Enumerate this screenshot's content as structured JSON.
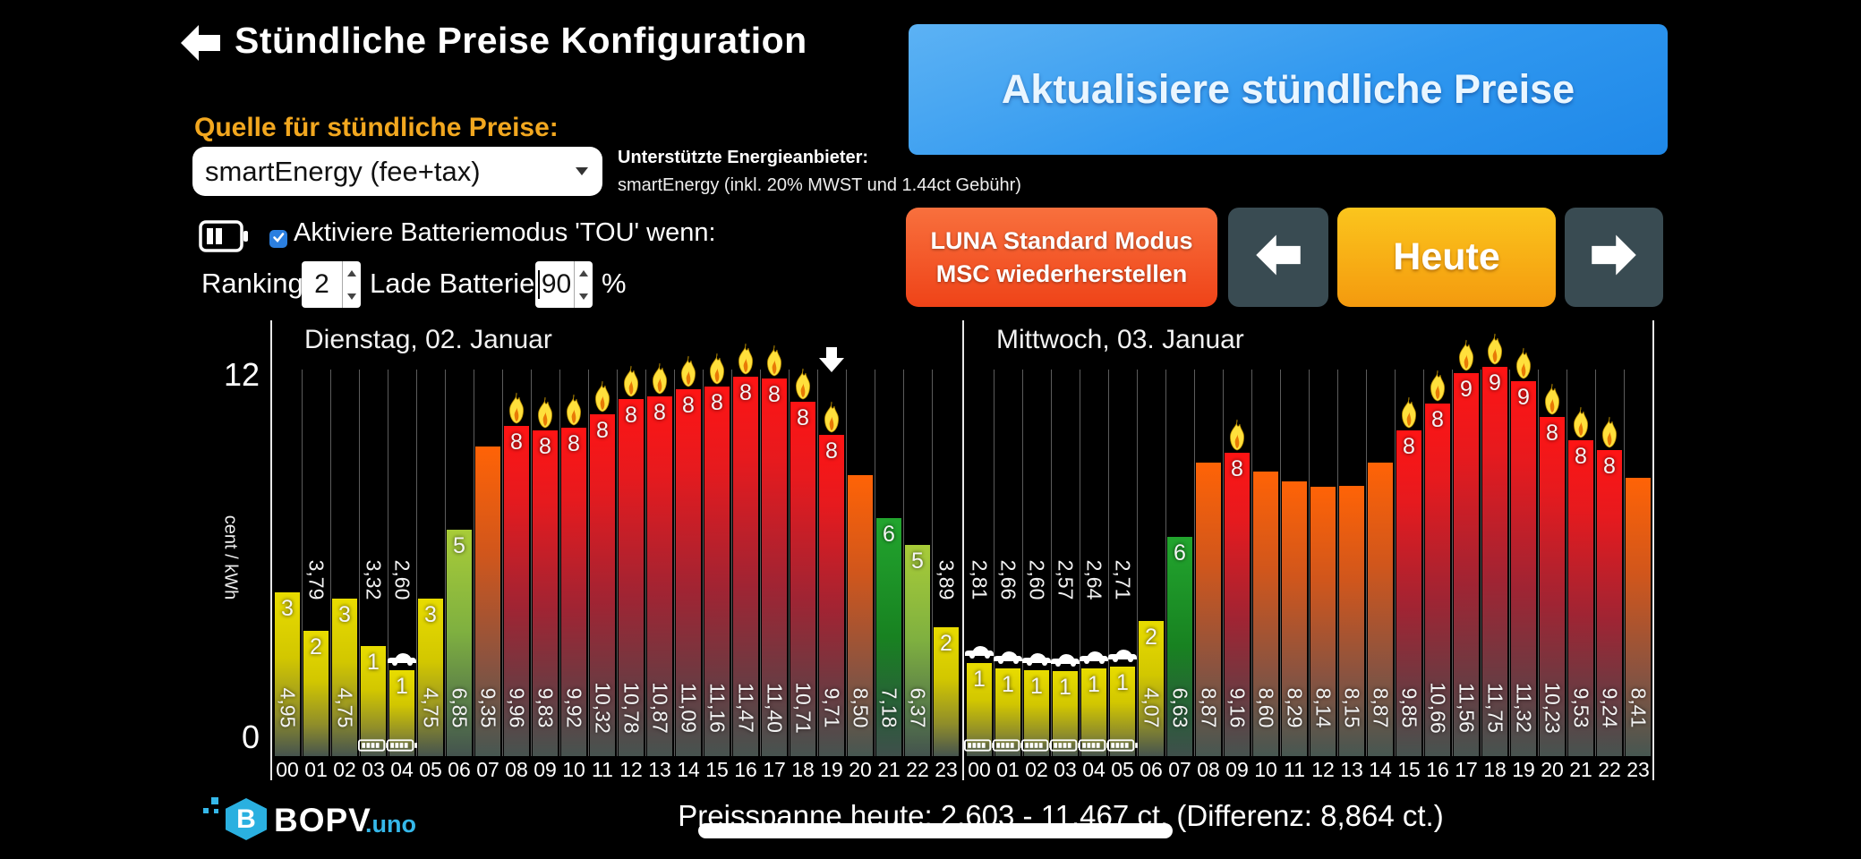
{
  "header": {
    "title": "Stündliche Preise Konfiguration"
  },
  "source": {
    "label": "Quelle für stündliche Preise:",
    "dropdown_value": "smartEnergy (fee+tax)",
    "provider_heading": "Unterstützte Energieanbieter:",
    "provider_note": "smartEnergy (inkl. 20% MWST und 1.44ct Gebühr)"
  },
  "actions": {
    "update_label": "Aktualisiere stündliche Preise",
    "luna_line1": "LUNA Standard Modus",
    "luna_line2": "MSC wiederherstellen",
    "today_label": "Heute"
  },
  "tou": {
    "enable_label": "Aktiviere Batteriemodus 'TOU' wenn:",
    "ranking_label": "Ranking <",
    "ranking_value": "2",
    "charge_label": "Lade Batterie bis",
    "charge_value": "90",
    "percent_label": "%"
  },
  "axis": {
    "y_max": "12",
    "y_min": "0",
    "unit": "cent / kWh"
  },
  "chart_data": {
    "type": "bar",
    "ylabel": "cent / kWh",
    "ylim": [
      0,
      12
    ],
    "hours": [
      "00",
      "01",
      "02",
      "03",
      "04",
      "05",
      "06",
      "07",
      "08",
      "09",
      "10",
      "11",
      "12",
      "13",
      "14",
      "15",
      "16",
      "17",
      "18",
      "19",
      "20",
      "21",
      "22",
      "23"
    ],
    "days": [
      {
        "title": "Dienstag, 02. Januar",
        "values": [
          4.95,
          3.79,
          4.75,
          3.32,
          2.6,
          4.75,
          6.85,
          9.35,
          9.96,
          9.83,
          9.92,
          10.32,
          10.78,
          10.87,
          11.09,
          11.16,
          11.47,
          11.4,
          10.71,
          9.71,
          8.5,
          7.18,
          6.37,
          3.89
        ],
        "labels": [
          "4,95",
          "3,79",
          "4,75",
          "3,32",
          "2,60",
          "4,75",
          "6,85",
          "9,35",
          "9,96",
          "9,83",
          "9,92",
          "10,32",
          "10,78",
          "10,87",
          "11,09",
          "11,16",
          "11,47",
          "11,40",
          "10,71",
          "9,71",
          "8,50",
          "7,18",
          "6,37",
          "3,89"
        ],
        "ranks": [
          "3",
          "2",
          "3",
          "1",
          "1",
          "3",
          "5",
          "",
          "8",
          "8",
          "8",
          "8",
          "8",
          "8",
          "8",
          "8",
          "8",
          "8",
          "8",
          "8",
          "",
          "6",
          "5",
          "2"
        ],
        "colors": [
          "yellow",
          "yellow",
          "yellow",
          "yellow",
          "yellow",
          "yellow",
          "lightgreen",
          "orange",
          "red",
          "red",
          "red",
          "red",
          "red",
          "red",
          "red",
          "red",
          "red",
          "red",
          "red",
          "red",
          "orange",
          "green",
          "lightgreen",
          "yellow"
        ],
        "flames": [
          8,
          9,
          10,
          11,
          12,
          13,
          14,
          15,
          16,
          17,
          18,
          19
        ],
        "batteries": [
          3,
          4
        ],
        "cars": [
          4
        ],
        "marker_hour": 19
      },
      {
        "title": "Mittwoch, 03. Januar",
        "values": [
          2.81,
          2.66,
          2.6,
          2.57,
          2.64,
          2.71,
          4.07,
          6.63,
          8.87,
          9.16,
          8.6,
          8.29,
          8.14,
          8.15,
          8.87,
          9.85,
          10.66,
          11.56,
          11.75,
          11.32,
          10.23,
          9.53,
          9.24,
          8.41
        ],
        "labels": [
          "2,81",
          "2,66",
          "2,60",
          "2,57",
          "2,64",
          "2,71",
          "4,07",
          "6,63",
          "8,87",
          "9,16",
          "8,60",
          "8,29",
          "8,14",
          "8,15",
          "8,87",
          "9,85",
          "10,66",
          "11,56",
          "11,75",
          "11,32",
          "10,23",
          "9,53",
          "9,24",
          "8,41"
        ],
        "ranks": [
          "1",
          "1",
          "1",
          "1",
          "1",
          "1",
          "2",
          "6",
          "",
          "8",
          "",
          "",
          "",
          "",
          "",
          "8",
          "8",
          "9",
          "9",
          "9",
          "8",
          "8",
          "8",
          ""
        ],
        "colors": [
          "yellow",
          "yellow",
          "yellow",
          "yellow",
          "yellow",
          "yellow",
          "yellow",
          "green",
          "orange",
          "red",
          "orange",
          "orange",
          "orange",
          "orange",
          "orange",
          "red",
          "red",
          "red",
          "red",
          "red",
          "red",
          "red",
          "red",
          "orange"
        ],
        "flames": [
          9,
          15,
          16,
          17,
          18,
          19,
          20,
          21,
          22
        ],
        "batteries": [
          0,
          1,
          2,
          3,
          4,
          5
        ],
        "cars": [
          0,
          1,
          2,
          3,
          4,
          5
        ],
        "marker_hour": null
      }
    ]
  },
  "footer": {
    "logo_b": "B",
    "logo_text": "BOPV",
    "logo_suffix": ".uno",
    "price_summary": "Preisspanne heute: 2,603 - 11,467 ct.  (Differenz: 8,864 ct.)"
  },
  "colors": {
    "accent_blue": "#2f97ef",
    "accent_orange": "#f2a71f",
    "button_luna": "#ef4318",
    "button_today": "#f49a0e",
    "bar_red": "#ff1414",
    "bar_orange": "#ff6306",
    "bar_yellow": "#e8dc00",
    "bar_green": "#22a52e",
    "bar_lightgreen": "#a8cc38",
    "logo_cyan": "#35b8ea"
  }
}
